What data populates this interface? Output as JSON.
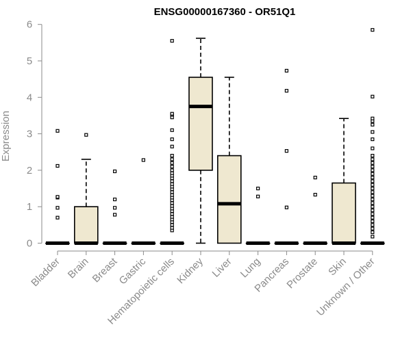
{
  "chart_data": {
    "type": "box",
    "title": "ENSG00000167360 - OR51Q1",
    "xlabel": "",
    "ylabel": "Expression",
    "ylim": [
      0,
      6
    ],
    "yticks": [
      0,
      1,
      2,
      3,
      4,
      5,
      6
    ],
    "box_fill": "#efe8d0",
    "categories": [
      "Bladder",
      "Brain",
      "Breast",
      "Gastric",
      "Hematopoietic cells",
      "Kidney",
      "Liver",
      "Lung",
      "Pancreas",
      "Prostate",
      "Skin",
      "Unknown / Other"
    ],
    "boxes": [
      {
        "category": "Bladder",
        "min": 0,
        "q1": 0,
        "median": 0,
        "q3": 0,
        "max": 0,
        "outliers": [
          0.7,
          0.97,
          1.25,
          1.27,
          2.12,
          3.08
        ]
      },
      {
        "category": "Brain",
        "min": 0,
        "q1": 0,
        "median": 0,
        "q3": 1.0,
        "max": 2.3,
        "outliers": [
          2.97
        ]
      },
      {
        "category": "Breast",
        "min": 0,
        "q1": 0,
        "median": 0,
        "q3": 0,
        "max": 0,
        "outliers": [
          0.78,
          0.97,
          1.2,
          1.97
        ]
      },
      {
        "category": "Gastric",
        "min": 0,
        "q1": 0,
        "median": 0,
        "q3": 0,
        "max": 0,
        "outliers": [
          2.28
        ]
      },
      {
        "category": "Hematopoietic cells",
        "min": 0,
        "q1": 0,
        "median": 0,
        "q3": 0,
        "max": 0,
        "outliers": [
          0.35,
          0.42,
          0.5,
          0.58,
          0.65,
          0.72,
          0.8,
          0.88,
          0.95,
          1.02,
          1.1,
          1.18,
          1.25,
          1.32,
          1.4,
          1.48,
          1.55,
          1.62,
          1.7,
          1.78,
          1.85,
          1.92,
          2.0,
          2.1,
          2.2,
          2.3,
          2.4,
          2.65,
          2.85,
          3.1,
          3.45,
          3.52,
          3.55,
          5.55
        ]
      },
      {
        "category": "Kidney",
        "min": 0,
        "q1": 2.0,
        "median": 3.75,
        "q3": 4.55,
        "max": 5.62,
        "outliers": []
      },
      {
        "category": "Liver",
        "min": 0,
        "q1": 0,
        "median": 1.08,
        "q3": 2.4,
        "max": 4.55,
        "outliers": []
      },
      {
        "category": "Lung",
        "min": 0,
        "q1": 0,
        "median": 0,
        "q3": 0,
        "max": 0,
        "outliers": [
          1.28,
          1.5
        ]
      },
      {
        "category": "Pancreas",
        "min": 0,
        "q1": 0,
        "median": 0,
        "q3": 0,
        "max": 0,
        "outliers": [
          0.98,
          2.53,
          4.18,
          4.73
        ]
      },
      {
        "category": "Prostate",
        "min": 0,
        "q1": 0,
        "median": 0,
        "q3": 0,
        "max": 0,
        "outliers": [
          1.33,
          1.8
        ]
      },
      {
        "category": "Skin",
        "min": 0,
        "q1": 0,
        "median": 0,
        "q3": 1.65,
        "max": 3.42,
        "outliers": []
      },
      {
        "category": "Unknown / Other",
        "min": 0,
        "q1": 0,
        "median": 0,
        "q3": 0,
        "max": 0,
        "outliers": [
          0.18,
          0.3,
          0.4,
          0.5,
          0.6,
          0.7,
          0.8,
          0.9,
          1.0,
          1.1,
          1.2,
          1.3,
          1.4,
          1.5,
          1.6,
          1.7,
          1.8,
          1.9,
          2.0,
          2.1,
          2.2,
          2.3,
          2.4,
          2.6,
          2.85,
          3.05,
          3.25,
          3.35,
          3.42,
          4.02,
          5.85
        ]
      }
    ]
  }
}
